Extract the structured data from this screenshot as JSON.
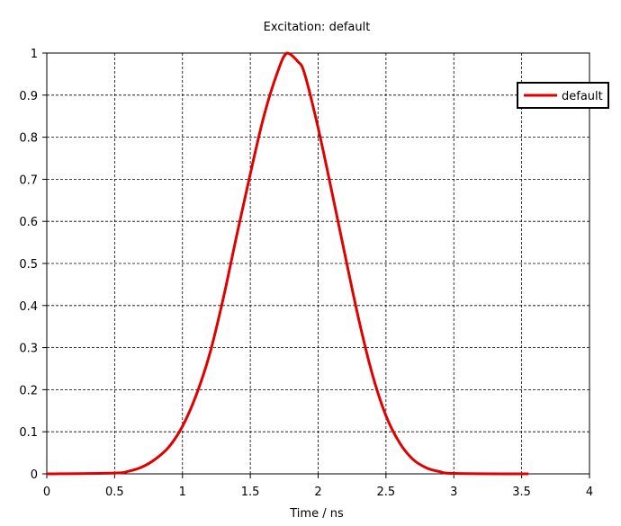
{
  "chart_data": {
    "type": "line",
    "title": "Excitation: default",
    "xlabel": "Time / ns",
    "ylabel": "",
    "xlim": [
      0,
      4
    ],
    "ylim": [
      0,
      1
    ],
    "xticks": [
      0,
      0.5,
      1,
      1.5,
      2,
      2.5,
      3,
      3.5,
      4
    ],
    "yticks": [
      0,
      0.1,
      0.2,
      0.3,
      0.4,
      0.5,
      0.6,
      0.7,
      0.8,
      0.9,
      1
    ],
    "xtick_labels": [
      "0",
      "0.5",
      "1",
      "1.5",
      "2",
      "2.5",
      "3",
      "3.5",
      "4"
    ],
    "ytick_labels": [
      "0",
      "0.1",
      "0.2",
      "0.3",
      "0.4",
      "0.5",
      "0.6",
      "0.7",
      "0.8",
      "0.9",
      "1"
    ],
    "grid": true,
    "legend_position": "top-right",
    "series": [
      {
        "name": "default",
        "color": "#e00000",
        "x": [
          0,
          0.5,
          0.6,
          0.7,
          0.8,
          0.9,
          1.0,
          1.1,
          1.2,
          1.3,
          1.4,
          1.5,
          1.6,
          1.7,
          1.77,
          1.85,
          1.9,
          2.0,
          2.1,
          2.2,
          2.3,
          2.4,
          2.5,
          2.6,
          2.7,
          2.8,
          2.9,
          3.0,
          3.55
        ],
        "y": [
          0,
          0.002,
          0.006,
          0.016,
          0.035,
          0.064,
          0.113,
          0.186,
          0.284,
          0.416,
          0.567,
          0.713,
          0.85,
          0.954,
          1.0,
          0.98,
          0.951,
          0.822,
          0.672,
          0.517,
          0.366,
          0.236,
          0.138,
          0.074,
          0.034,
          0.014,
          0.005,
          0.001,
          0
        ]
      }
    ]
  }
}
